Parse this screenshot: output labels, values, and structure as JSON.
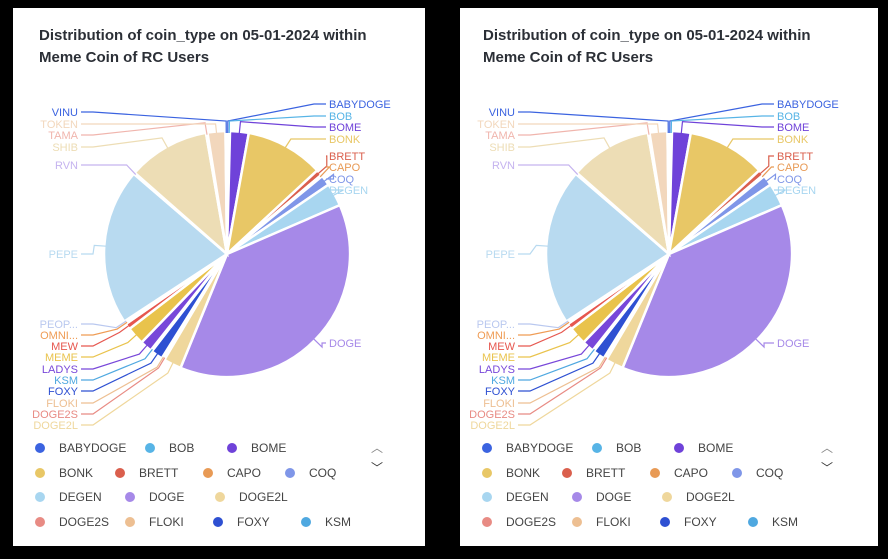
{
  "chart_data": {
    "type": "pie",
    "title": "Distribution of coin_type on 05-01-2024 within Meme Coin of RC Users",
    "slices": [
      {
        "name": "BABYDOGE",
        "value": 0.2,
        "color": "#3B63E0"
      },
      {
        "name": "BOB",
        "value": 0.2,
        "color": "#57B4E6"
      },
      {
        "name": "BOME",
        "value": 2.5,
        "color": "#6F42D9"
      },
      {
        "name": "BONK",
        "value": 10.5,
        "color": "#E8C766"
      },
      {
        "name": "BRETT",
        "value": 0.8,
        "color": "#DA5F4D"
      },
      {
        "name": "CAPO",
        "value": 0.2,
        "color": "#E89A55"
      },
      {
        "name": "COQ",
        "value": 1.4,
        "color": "#7F96E8"
      },
      {
        "name": "DEGEN",
        "value": 3.1,
        "color": "#A8D6F0"
      },
      {
        "name": "DOGE",
        "value": 38.5,
        "color": "#A689E8"
      },
      {
        "name": "DOGE2L",
        "value": 2.4,
        "color": "#EFD79C"
      },
      {
        "name": "DOGE2S",
        "value": 0.2,
        "color": "#E88B84"
      },
      {
        "name": "FLOKI",
        "value": 0.2,
        "color": "#EDBF92"
      },
      {
        "name": "FOXY",
        "value": 1.6,
        "color": "#2E50D2"
      },
      {
        "name": "KSM",
        "value": 0.2,
        "color": "#4FA8E0"
      },
      {
        "name": "LADYS",
        "value": 1.6,
        "color": "#7847D9"
      },
      {
        "name": "MEME",
        "value": 2.4,
        "color": "#E9C34C"
      },
      {
        "name": "MEW",
        "value": 0.8,
        "color": "#E6574F"
      },
      {
        "name": "OMNI...",
        "value": 0.2,
        "color": "#EF9C55"
      },
      {
        "name": "PEOP...",
        "value": 0.2,
        "color": "#B9C8EF"
      },
      {
        "name": "PEPE",
        "value": 21.0,
        "color": "#B8DAF0"
      },
      {
        "name": "RVN",
        "value": 0.2,
        "color": "#C5B3EF"
      },
      {
        "name": "SHIB",
        "value": 11.0,
        "color": "#EDDDB5"
      },
      {
        "name": "TAMA",
        "value": 0.2,
        "color": "#F0B5AD"
      },
      {
        "name": "TOKEN",
        "value": 2.4,
        "color": "#F2D7BC"
      },
      {
        "name": "VINU",
        "value": 0.2,
        "color": "#3B63E0"
      }
    ],
    "legend": {
      "placement": "bottom",
      "items": [
        "BABYDOGE",
        "BOB",
        "BOME",
        "BONK",
        "BRETT",
        "CAPO",
        "COQ",
        "DEGEN",
        "DOGE",
        "DOGE2L",
        "DOGE2S",
        "FLOKI",
        "FOXY",
        "KSM"
      ]
    }
  },
  "pager": {
    "up": "︿",
    "down": "﹀"
  }
}
